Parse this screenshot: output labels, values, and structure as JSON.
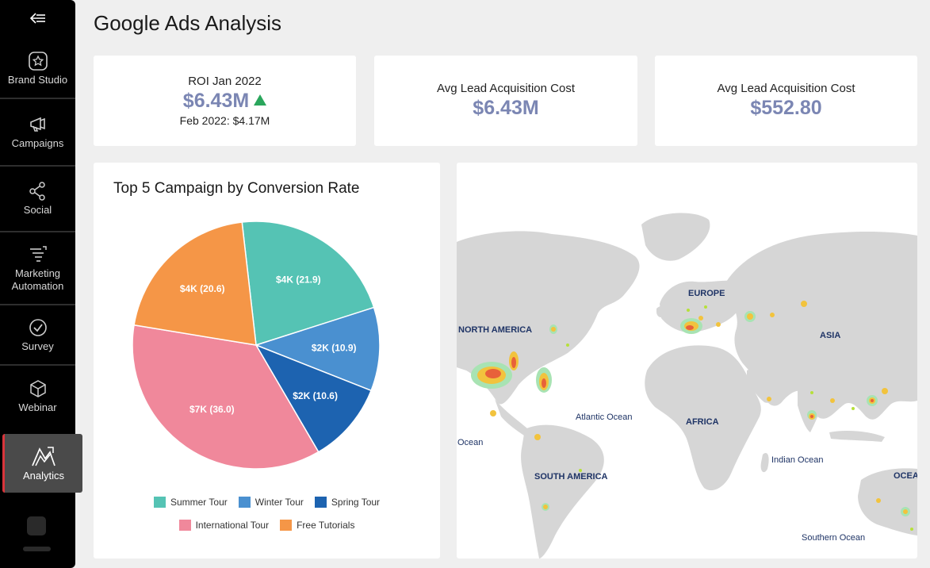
{
  "page_title": "Google Ads Analysis",
  "sidebar": {
    "items": [
      {
        "label": "Brand Studio",
        "icon": "brand-studio-icon"
      },
      {
        "label": "Campaigns",
        "icon": "megaphone-icon"
      },
      {
        "label": "Social",
        "icon": "share-icon"
      },
      {
        "label": "Marketing Automation",
        "icon": "automation-icon"
      },
      {
        "label": "Survey",
        "icon": "check-circle-icon"
      },
      {
        "label": "Webinar",
        "icon": "cube-icon"
      },
      {
        "label": "Analytics",
        "icon": "analytics-icon",
        "active": true
      }
    ]
  },
  "kpis": [
    {
      "label": "ROI Jan 2022",
      "value": "$6.43M",
      "sub": "Feb 2022: $4.17M",
      "trend": "up"
    },
    {
      "label": "Avg Lead Acquisition Cost",
      "value": "$6.43M"
    },
    {
      "label": "Avg Lead Acquisition Cost",
      "value": "$552.80"
    }
  ],
  "colors": {
    "kpi_value": "#7b86b3",
    "trend_up": "#2aa65c",
    "active_accent": "#d9343a"
  },
  "chart_data": {
    "type": "pie",
    "title": "Top 5 Campaign by Conversion Rate",
    "slices": [
      {
        "name": "Summer Tour",
        "label": "$4K (21.9)",
        "value": 21.9,
        "color": "#55c3b4"
      },
      {
        "name": "Winter Tour",
        "label": "$2K (10.9)",
        "value": 10.9,
        "color": "#4a90d0"
      },
      {
        "name": "Spring Tour",
        "label": "$2K (10.6)",
        "value": 10.6,
        "color": "#1d63b0"
      },
      {
        "name": "International Tour",
        "label": "$7K (36.0)",
        "value": 36.0,
        "color": "#f0889b"
      },
      {
        "name": "Free Tutorials",
        "label": "$4K (20.6)",
        "value": 20.6,
        "color": "#f59647"
      }
    ],
    "legend_rows": [
      [
        "Summer Tour",
        "Winter Tour",
        "Spring Tour"
      ],
      [
        "International Tour",
        "Free Tutorials"
      ]
    ]
  },
  "map": {
    "regions": [
      "NORTH AMERICA",
      "SOUTH AMERICA",
      "EUROPE",
      "AFRICA",
      "ASIA",
      "OCEA"
    ],
    "oceans": [
      "Atlantic Ocean",
      "Indian Ocean",
      "Southern Ocean",
      "Ocean"
    ]
  }
}
